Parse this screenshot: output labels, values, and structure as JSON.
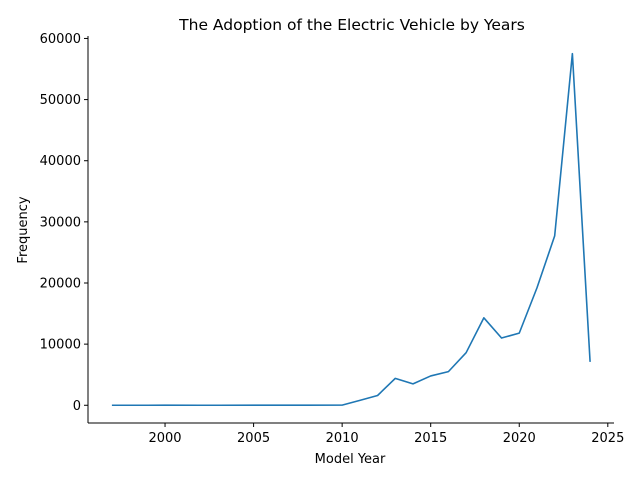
{
  "colors": {
    "series": "#1f77b4",
    "axis": "#000000",
    "background": "#ffffff"
  },
  "chart_data": {
    "type": "line",
    "title": "The Adoption of the Electric Vehicle by Years",
    "xlabel": "Model Year",
    "ylabel": "Frequency",
    "xlim": [
      1995.65,
      2025.35
    ],
    "ylim": [
      -2900,
      60400
    ],
    "xticks": [
      2000,
      2005,
      2010,
      2015,
      2020,
      2025
    ],
    "yticks": [
      0,
      10000,
      20000,
      30000,
      40000,
      50000,
      60000
    ],
    "grid": false,
    "legend": "none",
    "series": [
      {
        "x": [
          1997,
          1998,
          1999,
          2000,
          2002,
          2003,
          2008,
          2010,
          2011,
          2012,
          2013,
          2014,
          2015,
          2016,
          2017,
          2018,
          2019,
          2020,
          2021,
          2022,
          2023,
          2024
        ],
        "y": [
          1,
          1,
          5,
          7,
          2,
          1,
          19,
          23,
          800,
          1600,
          4400,
          3500,
          4800,
          5500,
          8600,
          14300,
          11000,
          11800,
          19200,
          27700,
          57500,
          7100
        ]
      }
    ]
  }
}
